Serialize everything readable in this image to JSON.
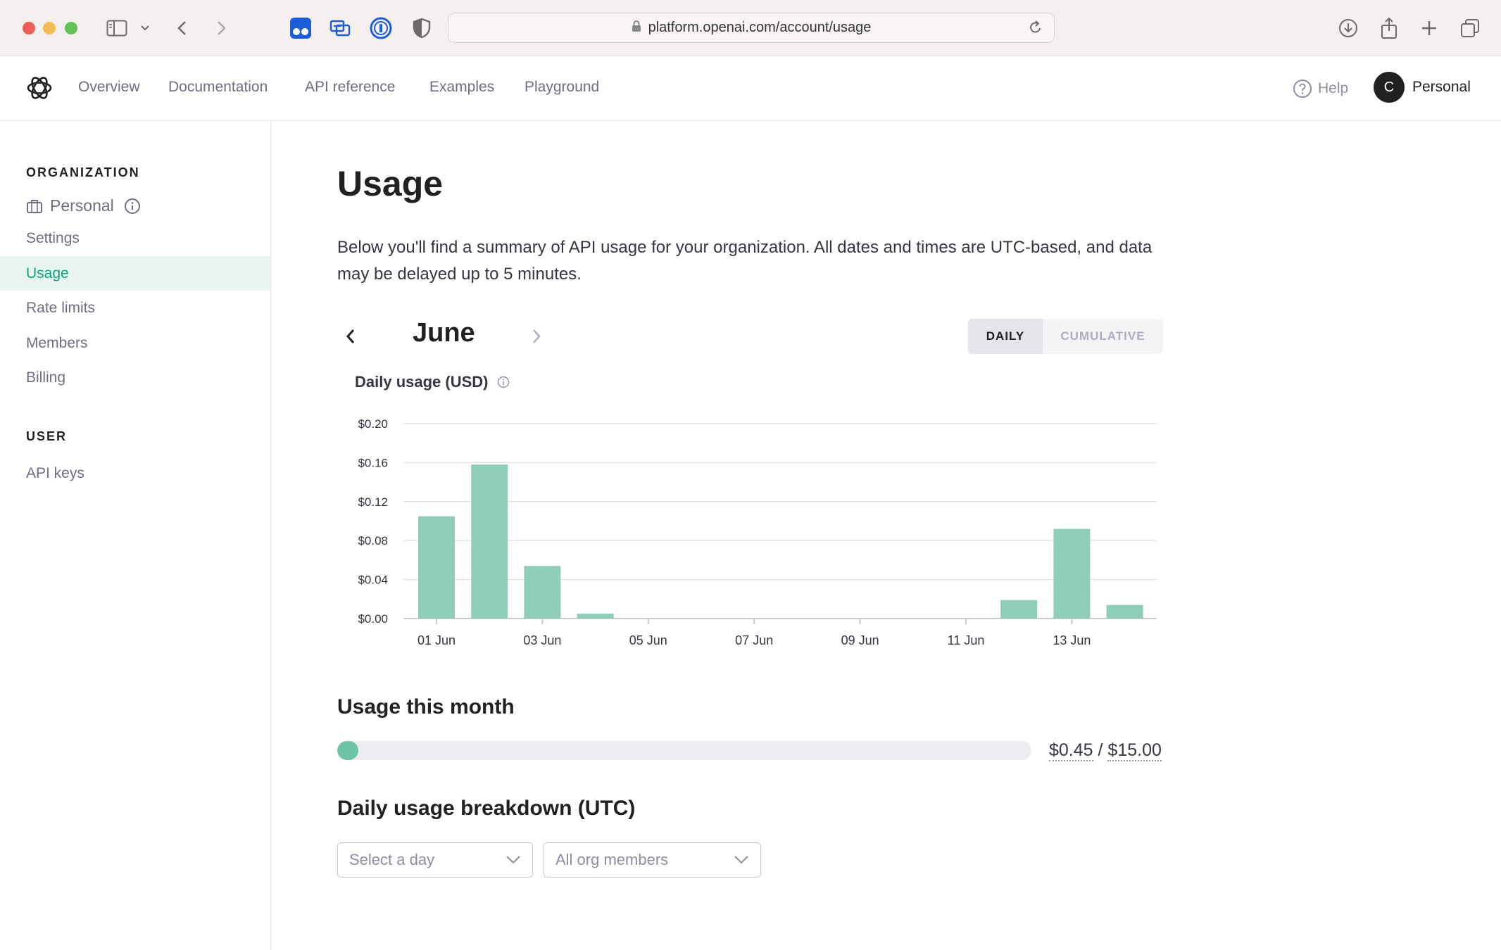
{
  "browser": {
    "url": "platform.openai.com/account/usage"
  },
  "header": {
    "nav": [
      "Overview",
      "Documentation",
      "API reference",
      "Examples",
      "Playground"
    ],
    "help_label": "Help",
    "avatar_initial": "C",
    "account_name": "Personal"
  },
  "sidebar": {
    "org_heading": "ORGANIZATION",
    "org_name": "Personal",
    "org_items": [
      {
        "label": "Settings",
        "active": false
      },
      {
        "label": "Usage",
        "active": true
      },
      {
        "label": "Rate limits",
        "active": false
      },
      {
        "label": "Members",
        "active": false
      },
      {
        "label": "Billing",
        "active": false
      }
    ],
    "user_heading": "USER",
    "user_items": [
      {
        "label": "API keys",
        "active": false
      }
    ]
  },
  "main": {
    "title": "Usage",
    "description": "Below you'll find a summary of API usage for your organization. All dates and times are UTC-based, and data may be delayed up to 5 minutes.",
    "month": "June",
    "toggle": {
      "daily": "DAILY",
      "cumulative": "CUMULATIVE",
      "selected": "DAILY"
    },
    "chart_title": "Daily usage (USD)",
    "usage_month_title": "Usage this month",
    "usage_used": "$0.45",
    "usage_separator": "/",
    "usage_limit": "$15.00",
    "usage_fraction": 0.03,
    "breakdown_title": "Daily usage breakdown (UTC)",
    "day_select_placeholder": "Select a day",
    "members_select_value": "All org members"
  },
  "colors": {
    "accent": "#10a37f",
    "bar": "#8fcfb8",
    "progress": "#6ec4a7"
  },
  "chart_data": {
    "type": "bar",
    "title": "Daily usage (USD)",
    "xlabel": "",
    "ylabel": "",
    "categories": [
      "01 Jun",
      "02 Jun",
      "03 Jun",
      "04 Jun",
      "05 Jun",
      "06 Jun",
      "07 Jun",
      "08 Jun",
      "09 Jun",
      "10 Jun",
      "11 Jun",
      "12 Jun",
      "13 Jun",
      "14 Jun"
    ],
    "x_tick_labels": [
      "01 Jun",
      "03 Jun",
      "05 Jun",
      "07 Jun",
      "09 Jun",
      "11 Jun",
      "13 Jun"
    ],
    "values": [
      0.105,
      0.158,
      0.054,
      0.005,
      0,
      0,
      0,
      0,
      0,
      0,
      0,
      0.019,
      0.092,
      0.014
    ],
    "y_ticks": [
      "$0.00",
      "$0.04",
      "$0.08",
      "$0.12",
      "$0.16",
      "$0.20"
    ],
    "ylim": [
      0,
      0.2
    ],
    "grid": true
  }
}
